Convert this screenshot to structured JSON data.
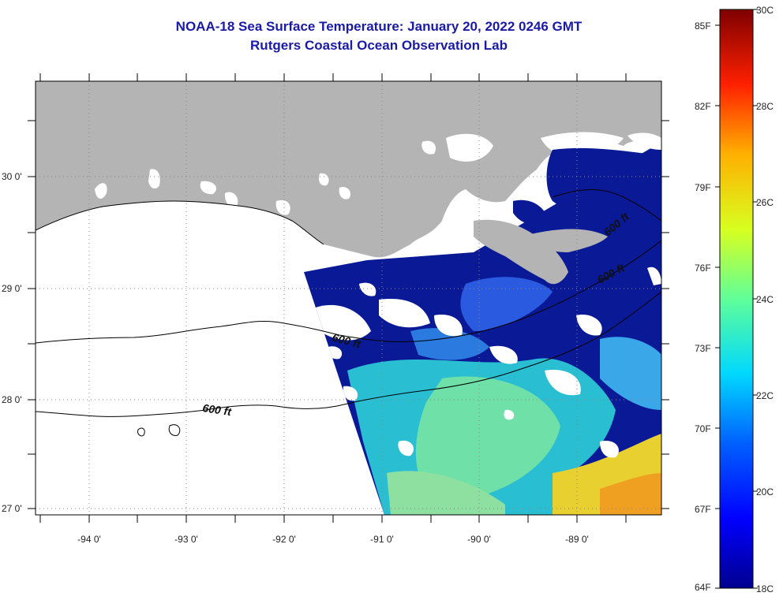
{
  "header": {
    "title": "NOAA-18 Sea Surface Temperature:  January 20, 2022 0246 GMT",
    "subtitle": "Rutgers Coastal Ocean Observation Lab"
  },
  "map": {
    "lon_labels": [
      "-94 0'",
      "-93 0'",
      "-92 0'",
      "-91 0'",
      "-90 0'",
      "-89 0'"
    ],
    "lat_labels": [
      "30 0'",
      "29 0'",
      "28 0'",
      "27 0'"
    ],
    "contour_labels": [
      "600 ft",
      "600 ft",
      "600 ft",
      "600 ft"
    ],
    "colors": {
      "land": "#b4b4b4",
      "cloud": "#ffffff",
      "cold_water": "#0a1a96"
    }
  },
  "colorbar": {
    "fahrenheit_labels": [
      "85F",
      "82F",
      "79F",
      "76F",
      "73F",
      "70F",
      "67F",
      "64F"
    ],
    "celsius_labels": [
      "30C",
      "28C",
      "26C",
      "24C",
      "22C",
      "20C",
      "18C"
    ],
    "range_c": [
      18,
      30
    ]
  }
}
